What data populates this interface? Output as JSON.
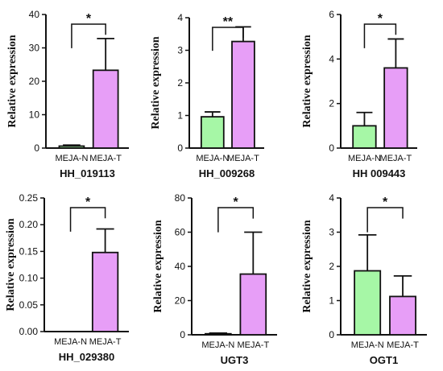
{
  "colors": {
    "control": "#a6f7a6",
    "treated": "#e79ef7",
    "stroke": "#111111"
  },
  "chart_data": [
    {
      "type": "bar",
      "title": "HH_019113",
      "xlabel": "",
      "ylabel": "Relative expression",
      "categories": [
        "MEJA-N",
        "MEJA-T"
      ],
      "values": [
        0.6,
        23.3
      ],
      "errors": [
        0.3,
        9.5
      ],
      "ylim": [
        0,
        40
      ],
      "yticks": [
        0,
        10,
        20,
        30,
        40
      ],
      "ytick_labels": [
        "0",
        "10",
        "20",
        "30",
        "40"
      ],
      "significance": "*"
    },
    {
      "type": "bar",
      "title": "HH_009268",
      "xlabel": "",
      "ylabel": "Relative expression",
      "categories": [
        "MEJA-N",
        "MEJA-T"
      ],
      "values": [
        0.96,
        3.27
      ],
      "errors": [
        0.15,
        0.45
      ],
      "ylim": [
        0,
        4
      ],
      "yticks": [
        0,
        1,
        2,
        3,
        4
      ],
      "ytick_labels": [
        "0",
        "1",
        "2",
        "3",
        "4"
      ],
      "significance": "**"
    },
    {
      "type": "bar",
      "title": "HH 009443",
      "xlabel": "",
      "ylabel": "Relative expression",
      "categories": [
        "MEJA-N",
        "MEJA-T"
      ],
      "values": [
        1.0,
        3.6
      ],
      "errors": [
        0.6,
        1.3
      ],
      "ylim": [
        0,
        6
      ],
      "yticks": [
        0,
        2,
        4,
        6
      ],
      "ytick_labels": [
        "0",
        "2",
        "4",
        "6"
      ],
      "significance": "*"
    },
    {
      "type": "bar",
      "title": "HH_029380",
      "xlabel": "",
      "ylabel": "Relative expression",
      "categories": [
        "MEJA-N",
        "MEJA-T"
      ],
      "values": [
        0.0,
        0.148
      ],
      "errors": [
        0.0,
        0.044
      ],
      "ylim": [
        0,
        0.25
      ],
      "yticks": [
        0,
        0.05,
        0.1,
        0.15,
        0.2,
        0.25
      ],
      "ytick_labels": [
        "0.00",
        "0.05",
        "0.10",
        "0.15",
        "0.20",
        "0.25"
      ],
      "significance": "*"
    },
    {
      "type": "bar",
      "title": "UGT3",
      "xlabel": "",
      "ylabel": "Relative expression",
      "categories": [
        "MEJA-N",
        "MEJA-T"
      ],
      "values": [
        0.6,
        35.5
      ],
      "errors": [
        0.4,
        24.5
      ],
      "ylim": [
        0,
        80
      ],
      "yticks": [
        0,
        20,
        40,
        60,
        80
      ],
      "ytick_labels": [
        "0",
        "20",
        "40",
        "60",
        "80"
      ],
      "significance": "*"
    },
    {
      "type": "bar",
      "title": "OGT1",
      "xlabel": "",
      "ylabel": "Relative expression",
      "categories": [
        "MEJA-N",
        "MEJA-T"
      ],
      "values": [
        1.87,
        1.12
      ],
      "errors": [
        1.05,
        0.6
      ],
      "ylim": [
        0,
        4
      ],
      "yticks": [
        0,
        1,
        2,
        3,
        4
      ],
      "ytick_labels": [
        "0",
        "1",
        "2",
        "3",
        "4"
      ],
      "significance": "*"
    }
  ]
}
